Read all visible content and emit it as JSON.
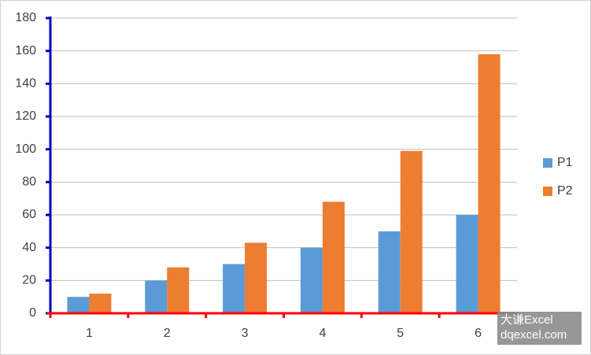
{
  "chart_data": {
    "type": "bar",
    "categories": [
      "1",
      "2",
      "3",
      "4",
      "5",
      "6"
    ],
    "series": [
      {
        "name": "P1",
        "color": "#5b9bd5",
        "values": [
          10,
          20,
          30,
          40,
          50,
          60
        ]
      },
      {
        "name": "P2",
        "color": "#ed7d31",
        "values": [
          12,
          28,
          43,
          68,
          99,
          158
        ]
      }
    ],
    "ylim": [
      0,
      180
    ],
    "yticks": [
      0,
      20,
      40,
      60,
      80,
      100,
      120,
      140,
      160,
      180
    ],
    "grid": true,
    "legend": "right",
    "y_axis_color": "#0000c0",
    "x_axis_color": "#ff0000",
    "watermark": [
      "大谦Excel",
      "dqexcel.com"
    ]
  }
}
